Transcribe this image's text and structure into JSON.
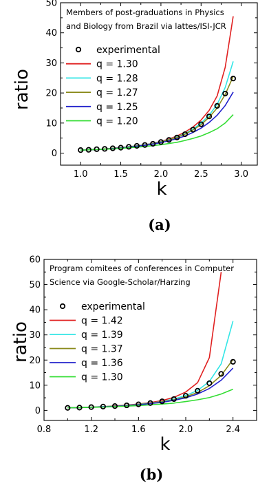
{
  "chart_data": [
    {
      "type": "line",
      "panel_label": "(a)",
      "annotation": [
        "Members of post-graduations in Physics",
        "and Biology from Brazil via lattes/ISI-JCR"
      ],
      "xlabel": "k",
      "ylabel": "ratio",
      "xlim": [
        0.75,
        3.2
      ],
      "ylim": [
        -4,
        50
      ],
      "xticks": [
        1.0,
        1.5,
        2.0,
        2.5,
        3.0
      ],
      "xtick_labels": [
        "1.0",
        "1.5",
        "2.0",
        "2.5",
        "3.0"
      ],
      "yticks": [
        0,
        10,
        20,
        30,
        40,
        50
      ],
      "ytick_labels": [
        "0",
        "10",
        "20",
        "30",
        "40",
        "50"
      ],
      "grid": false,
      "legend_position": "left",
      "scatter": {
        "name": "experimental",
        "x": [
          1.0,
          1.1,
          1.2,
          1.3,
          1.4,
          1.5,
          1.6,
          1.7,
          1.8,
          1.9,
          2.0,
          2.1,
          2.2,
          2.3,
          2.4,
          2.5,
          2.6,
          2.7,
          2.8,
          2.9
        ],
        "y": [
          1.0,
          1.1,
          1.3,
          1.4,
          1.6,
          1.8,
          2.1,
          2.4,
          2.7,
          3.1,
          3.7,
          4.4,
          5.2,
          6.3,
          7.8,
          9.6,
          12.2,
          15.7,
          19.8,
          24.8
        ]
      },
      "series": [
        {
          "name": "q = 1.30",
          "color": "#e02020",
          "x": [
            1.0,
            1.1,
            1.2,
            1.3,
            1.4,
            1.5,
            1.6,
            1.7,
            1.8,
            1.9,
            2.0,
            2.1,
            2.2,
            2.3,
            2.4,
            2.5,
            2.6,
            2.7,
            2.8,
            2.9
          ],
          "y": [
            1.0,
            1.1,
            1.2,
            1.4,
            1.6,
            1.8,
            2.1,
            2.4,
            2.8,
            3.3,
            3.9,
            4.7,
            5.7,
            7.0,
            8.7,
            11.0,
            14.2,
            19.0,
            28.5,
            45.5
          ]
        },
        {
          "name": "q = 1.28",
          "color": "#33e6e6",
          "x": [
            1.0,
            1.1,
            1.2,
            1.3,
            1.4,
            1.5,
            1.6,
            1.7,
            1.8,
            1.9,
            2.0,
            2.1,
            2.2,
            2.3,
            2.4,
            2.5,
            2.6,
            2.7,
            2.8,
            2.9
          ],
          "y": [
            1.0,
            1.1,
            1.2,
            1.4,
            1.6,
            1.8,
            2.1,
            2.4,
            2.8,
            3.2,
            3.8,
            4.5,
            5.4,
            6.5,
            8.0,
            10.0,
            12.6,
            16.2,
            21.8,
            30.5
          ]
        },
        {
          "name": "q = 1.27",
          "color": "#8a8a1a",
          "x": [
            1.0,
            1.1,
            1.2,
            1.3,
            1.4,
            1.5,
            1.6,
            1.7,
            1.8,
            1.9,
            2.0,
            2.1,
            2.2,
            2.3,
            2.4,
            2.5,
            2.6,
            2.7,
            2.8,
            2.9
          ],
          "y": [
            1.0,
            1.1,
            1.2,
            1.4,
            1.6,
            1.8,
            2.1,
            2.4,
            2.7,
            3.1,
            3.7,
            4.4,
            5.2,
            6.3,
            7.7,
            9.5,
            11.9,
            15.0,
            19.5,
            25.5
          ]
        },
        {
          "name": "q = 1.25",
          "color": "#2222cc",
          "x": [
            1.0,
            1.1,
            1.2,
            1.3,
            1.4,
            1.5,
            1.6,
            1.7,
            1.8,
            1.9,
            2.0,
            2.1,
            2.2,
            2.3,
            2.4,
            2.5,
            2.6,
            2.7,
            2.8,
            2.9
          ],
          "y": [
            1.0,
            1.1,
            1.2,
            1.3,
            1.5,
            1.7,
            2.0,
            2.3,
            2.6,
            3.0,
            3.5,
            4.1,
            4.8,
            5.7,
            6.9,
            8.3,
            10.2,
            12.6,
            15.8,
            20.3
          ]
        },
        {
          "name": "q = 1.20",
          "color": "#33dd33",
          "x": [
            1.0,
            1.1,
            1.2,
            1.3,
            1.4,
            1.5,
            1.6,
            1.7,
            1.8,
            1.9,
            2.0,
            2.1,
            2.2,
            2.3,
            2.4,
            2.5,
            2.6,
            2.7,
            2.8,
            2.9
          ],
          "y": [
            1.0,
            1.1,
            1.2,
            1.3,
            1.4,
            1.6,
            1.8,
            2.0,
            2.2,
            2.5,
            2.8,
            3.2,
            3.6,
            4.2,
            4.9,
            5.7,
            6.8,
            8.1,
            10.0,
            12.8
          ]
        }
      ]
    },
    {
      "type": "line",
      "panel_label": "(b)",
      "annotation": [
        "Program comitees of conferences in Computer",
        "Science via Google-Scholar/Harzing"
      ],
      "xlabel": "k",
      "ylabel": "ratio",
      "xlim": [
        0.8,
        2.6
      ],
      "ylim": [
        -4,
        60
      ],
      "xticks": [
        0.8,
        1.2,
        1.6,
        2.0,
        2.4
      ],
      "xtick_labels": [
        "0.8",
        "1.2",
        "1.6",
        "2.0",
        "2.4"
      ],
      "yticks": [
        0,
        10,
        20,
        30,
        40,
        50,
        60
      ],
      "ytick_labels": [
        "0",
        "10",
        "20",
        "30",
        "40",
        "50",
        "60"
      ],
      "grid": false,
      "legend_position": "left",
      "scatter": {
        "name": "experimental",
        "x": [
          1.0,
          1.1,
          1.2,
          1.3,
          1.4,
          1.5,
          1.6,
          1.7,
          1.8,
          1.9,
          2.0,
          2.1,
          2.2,
          2.3,
          2.4
        ],
        "y": [
          1.0,
          1.1,
          1.3,
          1.5,
          1.7,
          2.0,
          2.4,
          2.9,
          3.6,
          4.5,
          5.8,
          7.8,
          10.8,
          14.5,
          19.3
        ]
      },
      "series": [
        {
          "name": "q = 1.42",
          "color": "#e02020",
          "x": [
            1.0,
            1.1,
            1.2,
            1.3,
            1.4,
            1.5,
            1.6,
            1.7,
            1.8,
            1.9,
            2.0,
            2.1,
            2.2,
            2.25,
            2.3
          ],
          "y": [
            1.0,
            1.1,
            1.3,
            1.5,
            1.8,
            2.1,
            2.5,
            3.1,
            3.9,
            5.2,
            7.3,
            11.0,
            21.0,
            38.0,
            55.0
          ]
        },
        {
          "name": "q = 1.39",
          "color": "#33e6e6",
          "x": [
            1.0,
            1.1,
            1.2,
            1.3,
            1.4,
            1.5,
            1.6,
            1.7,
            1.8,
            1.9,
            2.0,
            2.1,
            2.2,
            2.3,
            2.4
          ],
          "y": [
            1.0,
            1.1,
            1.3,
            1.5,
            1.7,
            2.0,
            2.4,
            2.9,
            3.5,
            4.5,
            5.9,
            7.9,
            11.5,
            18.5,
            35.5
          ]
        },
        {
          "name": "q = 1.37",
          "color": "#8a8a1a",
          "x": [
            1.0,
            1.1,
            1.2,
            1.3,
            1.4,
            1.5,
            1.6,
            1.7,
            1.8,
            1.9,
            2.0,
            2.1,
            2.2,
            2.3,
            2.4
          ],
          "y": [
            1.0,
            1.1,
            1.3,
            1.4,
            1.7,
            2.0,
            2.3,
            2.8,
            3.4,
            4.2,
            5.4,
            7.1,
            9.8,
            13.9,
            20.2
          ]
        },
        {
          "name": "q = 1.36",
          "color": "#2222cc",
          "x": [
            1.0,
            1.1,
            1.2,
            1.3,
            1.4,
            1.5,
            1.6,
            1.7,
            1.8,
            1.9,
            2.0,
            2.1,
            2.2,
            2.3,
            2.4
          ],
          "y": [
            1.0,
            1.1,
            1.2,
            1.4,
            1.6,
            1.9,
            2.2,
            2.7,
            3.2,
            4.0,
            5.0,
            6.5,
            8.7,
            12.0,
            16.8
          ]
        },
        {
          "name": "q = 1.30",
          "color": "#33dd33",
          "x": [
            1.0,
            1.1,
            1.2,
            1.3,
            1.4,
            1.5,
            1.6,
            1.7,
            1.8,
            1.9,
            2.0,
            2.1,
            2.2,
            2.3,
            2.4
          ],
          "y": [
            1.0,
            1.1,
            1.2,
            1.3,
            1.5,
            1.7,
            1.9,
            2.2,
            2.5,
            2.9,
            3.5,
            4.2,
            5.1,
            6.5,
            8.4
          ]
        }
      ]
    }
  ]
}
